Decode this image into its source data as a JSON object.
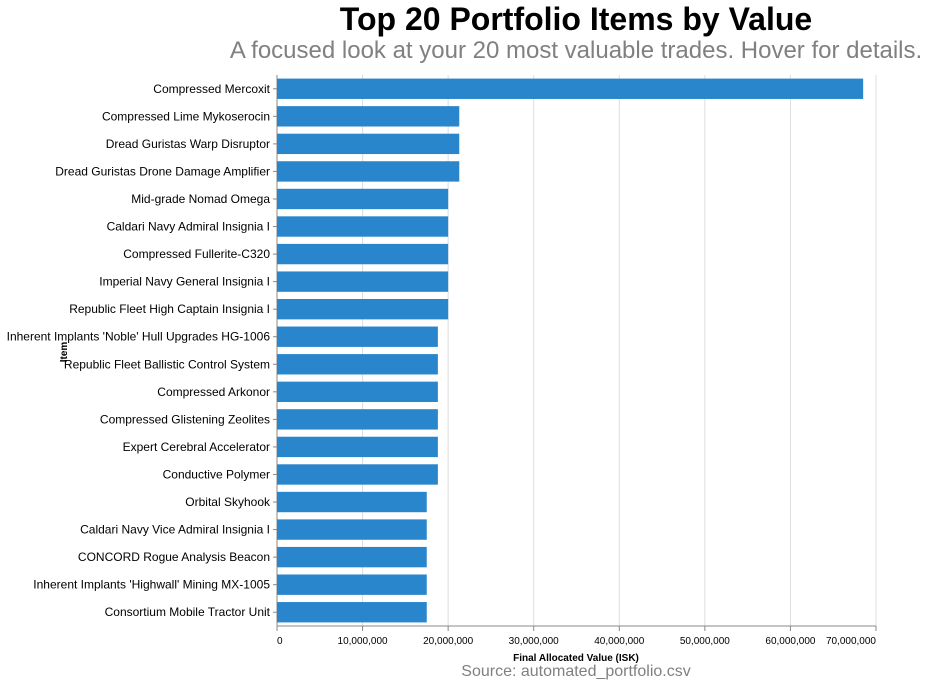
{
  "chart_data": {
    "type": "bar",
    "orientation": "horizontal",
    "title": "Top 20 Portfolio Items by Value",
    "subtitle": "A focused look at your 20 most valuable trades. Hover for details.",
    "xlabel": "Final Allocated Value (ISK)",
    "ylabel": "Item",
    "source": "Source: automated_portfolio.csv",
    "xlim": [
      0,
      70000000
    ],
    "xticks": [
      0,
      10000000,
      20000000,
      30000000,
      40000000,
      50000000,
      60000000,
      70000000
    ],
    "xtick_labels": [
      "0",
      "10,000,000",
      "20,000,000",
      "30,000,000",
      "40,000,000",
      "50,000,000",
      "60,000,000",
      "70,000,000"
    ],
    "bar_color": "#2986cc",
    "categories": [
      "Compressed Mercoxit",
      "Compressed Lime Mykoserocin",
      "Dread Guristas Warp Disruptor",
      "Dread Guristas Drone Damage Amplifier",
      "Mid-grade Nomad Omega",
      "Caldari Navy Admiral Insignia I",
      "Compressed Fullerite-C320",
      "Imperial Navy General Insignia I",
      "Republic Fleet High Captain Insignia I",
      "Inherent Implants 'Noble' Hull Upgrades HG-1006",
      "Republic Fleet Ballistic Control System",
      "Compressed Arkonor",
      "Compressed Glistening Zeolites",
      "Expert Cerebral Accelerator",
      "Conductive Polymer",
      "Orbital Skyhook",
      "Caldari Navy Vice Admiral Insignia I",
      "CONCORD Rogue Analysis Beacon",
      "Inherent Implants 'Highwall' Mining MX-1005",
      "Consortium Mobile Tractor Unit"
    ],
    "values": [
      68500000,
      21300000,
      21300000,
      21300000,
      20000000,
      20000000,
      20000000,
      20000000,
      20000000,
      18800000,
      18800000,
      18800000,
      18800000,
      18800000,
      18800000,
      17500000,
      17500000,
      17500000,
      17500000,
      17500000
    ]
  }
}
